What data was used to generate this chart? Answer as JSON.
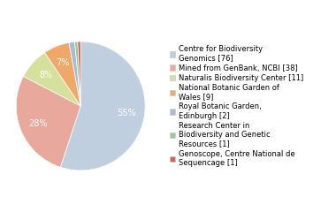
{
  "legend_labels": [
    "Centre for Biodiversity\nGenomics [76]",
    "Mined from GenBank, NCBI [38]",
    "Naturalis Biodiversity Center [11]",
    "National Botanic Garden of\nWales [9]",
    "Royal Botanic Garden,\nEdinburgh [2]",
    "Research Center in\nBiodiversity and Genetic\nResources [1]",
    "Genoscope, Centre National de\nSequencage [1]"
  ],
  "values": [
    76,
    38,
    11,
    9,
    2,
    1,
    1
  ],
  "colors": [
    "#c0cfe0",
    "#e8a89c",
    "#d4e09c",
    "#f0a868",
    "#a8bcd8",
    "#98c898",
    "#d06850"
  ],
  "background_color": "#ffffff",
  "text_fontsize": 6.5,
  "legend_fontsize": 6.0,
  "pct_fontsize": 7.0
}
